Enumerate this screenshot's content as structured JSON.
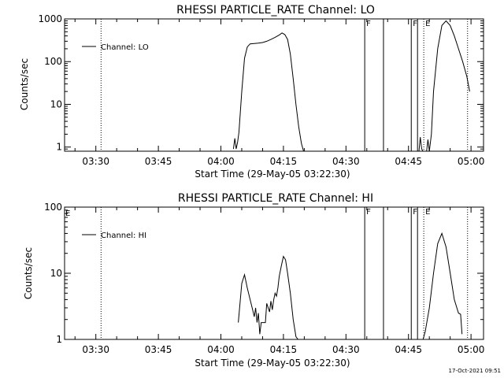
{
  "footer": {
    "timestamp": "17-Oct-2021 09:51"
  },
  "chart_data": [
    {
      "type": "line",
      "title": "RHESSI PARTICLE_RATE Channel: LO",
      "xlabel": "Start Time (29-May-05 03:22:30)",
      "ylabel": "Counts/sec",
      "yscale": "log",
      "ylim": [
        0.8,
        1000
      ],
      "xlim": [
        "03:22:30",
        "05:03:00"
      ],
      "x_ticks": [
        "03:30",
        "03:45",
        "04:00",
        "04:15",
        "04:30",
        "04:45",
        "05:00"
      ],
      "y_ticks": [
        "1",
        "10",
        "100",
        "1000"
      ],
      "legend": {
        "position": "top-left",
        "entries": [
          "Channel: LO"
        ]
      },
      "series": [
        {
          "name": "Channel: LO",
          "segments": [
            {
              "x": [
                "04:03:00",
                "04:03:20",
                "04:03:40",
                "04:04:00",
                "04:04:20",
                "04:05:00",
                "04:05:40",
                "04:06:20",
                "04:07:00",
                "04:08:00",
                "04:09:00",
                "04:10:00",
                "04:11:00",
                "04:12:00",
                "04:13:00",
                "04:14:00",
                "04:14:40",
                "04:15:20",
                "04:16:00",
                "04:16:40",
                "04:17:20",
                "04:18:00",
                "04:18:40",
                "04:19:20",
                "04:19:50"
              ],
              "y": [
                0.9,
                1.6,
                0.9,
                1.3,
                2.2,
                20,
                120,
                220,
                260,
                265,
                270,
                280,
                300,
                330,
                370,
                420,
                470,
                430,
                330,
                150,
                40,
                10,
                3,
                1.2,
                0.8
              ]
            },
            {
              "x": [
                "04:47:30",
                "04:47:50",
                "04:48:10",
                "04:48:30"
              ],
              "y": [
                0.8,
                1.7,
                0.9,
                0.8
              ]
            },
            {
              "x": [
                "04:49:20",
                "04:49:40",
                "04:50:00",
                "04:50:30",
                "04:51:00",
                "04:52:00",
                "04:53:00",
                "04:54:00",
                "04:55:00",
                "04:56:00",
                "04:57:00",
                "04:58:00",
                "04:59:00",
                "04:59:40"
              ],
              "y": [
                0.8,
                1.5,
                0.8,
                2,
                20,
                200,
                700,
                900,
                700,
                400,
                200,
                100,
                45,
                20
              ]
            }
          ]
        }
      ],
      "markers": [
        {
          "time": "03:31:15",
          "style": "dotted",
          "label": ""
        },
        {
          "time": "04:34:30",
          "style": "solid",
          "label": "F"
        },
        {
          "time": "04:39:00",
          "style": "solid",
          "label": ""
        },
        {
          "time": "04:45:40",
          "style": "solid",
          "label": "F"
        },
        {
          "time": "04:47:10",
          "style": "solid",
          "label": ""
        },
        {
          "time": "04:48:40",
          "style": "dotted",
          "label": "E"
        },
        {
          "time": "04:59:10",
          "style": "dotted",
          "label": ""
        }
      ]
    },
    {
      "type": "line",
      "title": "RHESSI PARTICLE_RATE Channel: HI",
      "xlabel": "Start Time (29-May-05 03:22:30)",
      "ylabel": "Counts/sec",
      "yscale": "log",
      "ylim": [
        1,
        100
      ],
      "xlim": [
        "03:22:30",
        "05:03:00"
      ],
      "x_ticks": [
        "03:30",
        "03:45",
        "04:00",
        "04:15",
        "04:30",
        "04:45",
        "05:00"
      ],
      "y_ticks": [
        "1",
        "10",
        "100"
      ],
      "legend": {
        "position": "top-left",
        "entries": [
          "Channel: HI"
        ]
      },
      "corner_label": "E",
      "series": [
        {
          "name": "Channel: HI",
          "segments": [
            {
              "x": [
                "04:04:10",
                "04:05:00",
                "04:05:40",
                "04:06:20",
                "04:07:00",
                "04:07:30",
                "04:08:00",
                "04:08:20",
                "04:08:40",
                "04:09:00",
                "04:09:20",
                "04:09:40",
                "04:10:00",
                "04:10:20",
                "04:10:40",
                "04:11:00",
                "04:11:40",
                "04:12:00",
                "04:12:20",
                "04:12:40",
                "04:13:00",
                "04:13:20",
                "04:13:40",
                "04:14:00",
                "04:14:30",
                "04:15:00",
                "04:15:30",
                "04:16:00",
                "04:16:40",
                "04:17:20",
                "04:18:00",
                "04:18:30"
              ],
              "y": [
                1.8,
                7,
                9.5,
                6,
                4,
                3,
                2.2,
                3,
                1.8,
                2.5,
                1.2,
                1.8,
                1.8,
                1.8,
                1.8,
                3.5,
                2.6,
                3.8,
                2.8,
                4,
                5,
                4.5,
                6,
                9,
                13,
                18,
                16,
                10,
                5,
                2,
                1.1,
                1
              ]
            },
            {
              "x": [
                "04:48:30",
                "04:49:00",
                "04:50:00",
                "04:51:00",
                "04:52:00",
                "04:53:00",
                "04:54:00",
                "04:55:00",
                "04:56:00",
                "04:57:00",
                "04:57:30",
                "04:57:50"
              ],
              "y": [
                1,
                1.3,
                3,
                10,
                28,
                40,
                25,
                10,
                4,
                2.5,
                2.4,
                1.2
              ]
            }
          ]
        }
      ],
      "markers": [
        {
          "time": "03:31:15",
          "style": "dotted",
          "label": ""
        },
        {
          "time": "04:34:30",
          "style": "solid",
          "label": "F"
        },
        {
          "time": "04:39:00",
          "style": "solid",
          "label": ""
        },
        {
          "time": "04:45:40",
          "style": "solid",
          "label": "F"
        },
        {
          "time": "04:47:10",
          "style": "solid",
          "label": ""
        },
        {
          "time": "04:48:40",
          "style": "dotted",
          "label": "E"
        },
        {
          "time": "04:59:10",
          "style": "dotted",
          "label": ""
        }
      ]
    }
  ]
}
